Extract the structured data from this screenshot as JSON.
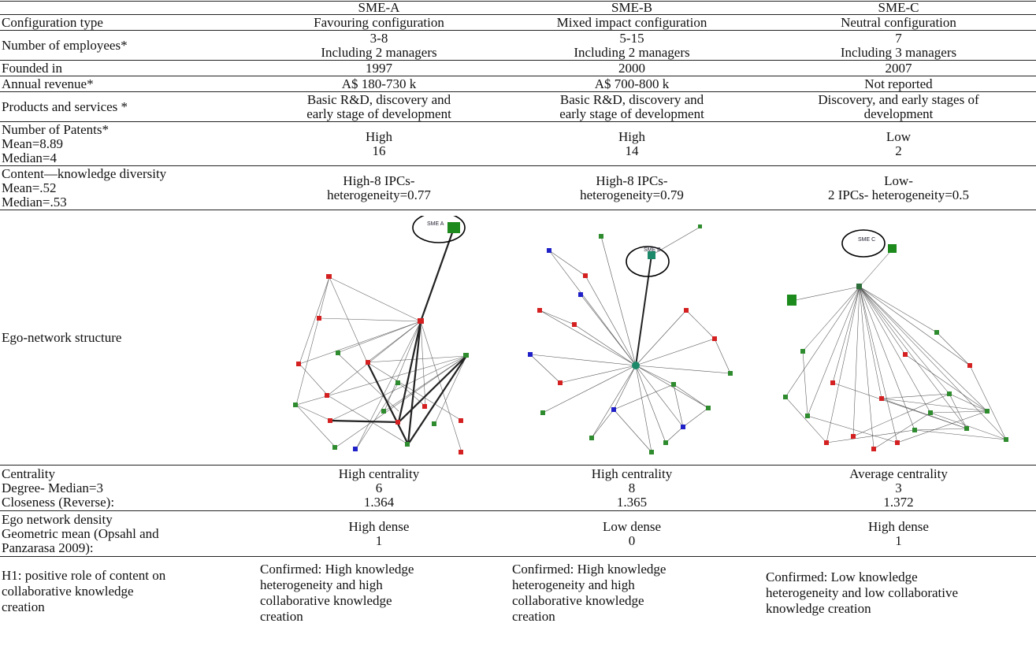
{
  "columns": [
    "",
    "SME-A",
    "SME-B",
    "SME-C"
  ],
  "rows": {
    "config": {
      "label": [
        "Configuration type"
      ],
      "a": [
        "Favouring configuration"
      ],
      "b": [
        "Mixed impact configuration"
      ],
      "c": [
        "Neutral configuration"
      ]
    },
    "employees": {
      "label": [
        "Number of employees*"
      ],
      "a": [
        "3-8",
        "Including 2 managers"
      ],
      "b": [
        "5-15",
        "Including 2 managers"
      ],
      "c": [
        "7",
        "Including 3 managers"
      ]
    },
    "founded": {
      "label": [
        "Founded in"
      ],
      "a": [
        "1997"
      ],
      "b": [
        "2000"
      ],
      "c": [
        "2007"
      ]
    },
    "revenue": {
      "label": [
        "Annual revenue*"
      ],
      "a": [
        "A$ 180-730 k"
      ],
      "b": [
        "A$ 700-800 k"
      ],
      "c": [
        "Not reported"
      ]
    },
    "products": {
      "label": [
        "Products and services *"
      ],
      "a": [
        "Basic R&D, discovery and",
        "early stage of development"
      ],
      "b": [
        "Basic R&D, discovery and",
        "early stage of development"
      ],
      "c": [
        "Discovery, and early stages of",
        "development"
      ]
    },
    "patents": {
      "label": [
        "Number of Patents*",
        "Mean=8.89",
        "Median=4"
      ],
      "a": [
        "High",
        "16"
      ],
      "b": [
        "High",
        "14"
      ],
      "c": [
        "Low",
        "2"
      ]
    },
    "content": {
      "label": [
        "Content—knowledge diversity",
        "Mean=.52",
        "Median=.53"
      ],
      "a": [
        "High-8 IPCs-",
        "heterogeneity=0.77"
      ],
      "b": [
        "High-8 IPCs-",
        "heterogeneity=0.79"
      ],
      "c": [
        "Low-",
        "2 IPCs- heterogeneity=0.5"
      ]
    },
    "network": {
      "label": [
        "Ego-network structure"
      ],
      "a_tag": "SME A",
      "b_tag": "SME B",
      "c_tag": "SME C"
    },
    "centrality": {
      "label": [
        "Centrality",
        "Degree- Median=3",
        "Closeness (Reverse):"
      ],
      "a": [
        "High centrality",
        "6",
        "1.364"
      ],
      "b": [
        "High centrality",
        "8",
        "1.365"
      ],
      "c": [
        "Average centrality",
        "3",
        "1.372"
      ]
    },
    "density": {
      "label": [
        "Ego network density",
        "Geometric mean (Opsahl and",
        "Panzarasa 2009):"
      ],
      "a": [
        "High dense",
        "1"
      ],
      "b": [
        "Low dense",
        "0"
      ],
      "c": [
        "High dense",
        "1"
      ]
    },
    "h1": {
      "label": [
        "H1: positive role of content on",
        "collaborative knowledge",
        "creation"
      ],
      "a": [
        "Confirmed: High knowledge",
        "heterogeneity and high",
        "collaborative knowledge",
        "creation"
      ],
      "b": [
        "Confirmed: High knowledge",
        "heterogeneity and high",
        "collaborative knowledge",
        "creation"
      ],
      "c": [
        "Confirmed: Low knowledge",
        "heterogeneity and low collaborative",
        "knowledge creation"
      ]
    }
  },
  "colors": {
    "node_green": "#2e8b2e",
    "node_red": "#d42020",
    "node_blue": "#2020c8",
    "edge": "#444444"
  }
}
